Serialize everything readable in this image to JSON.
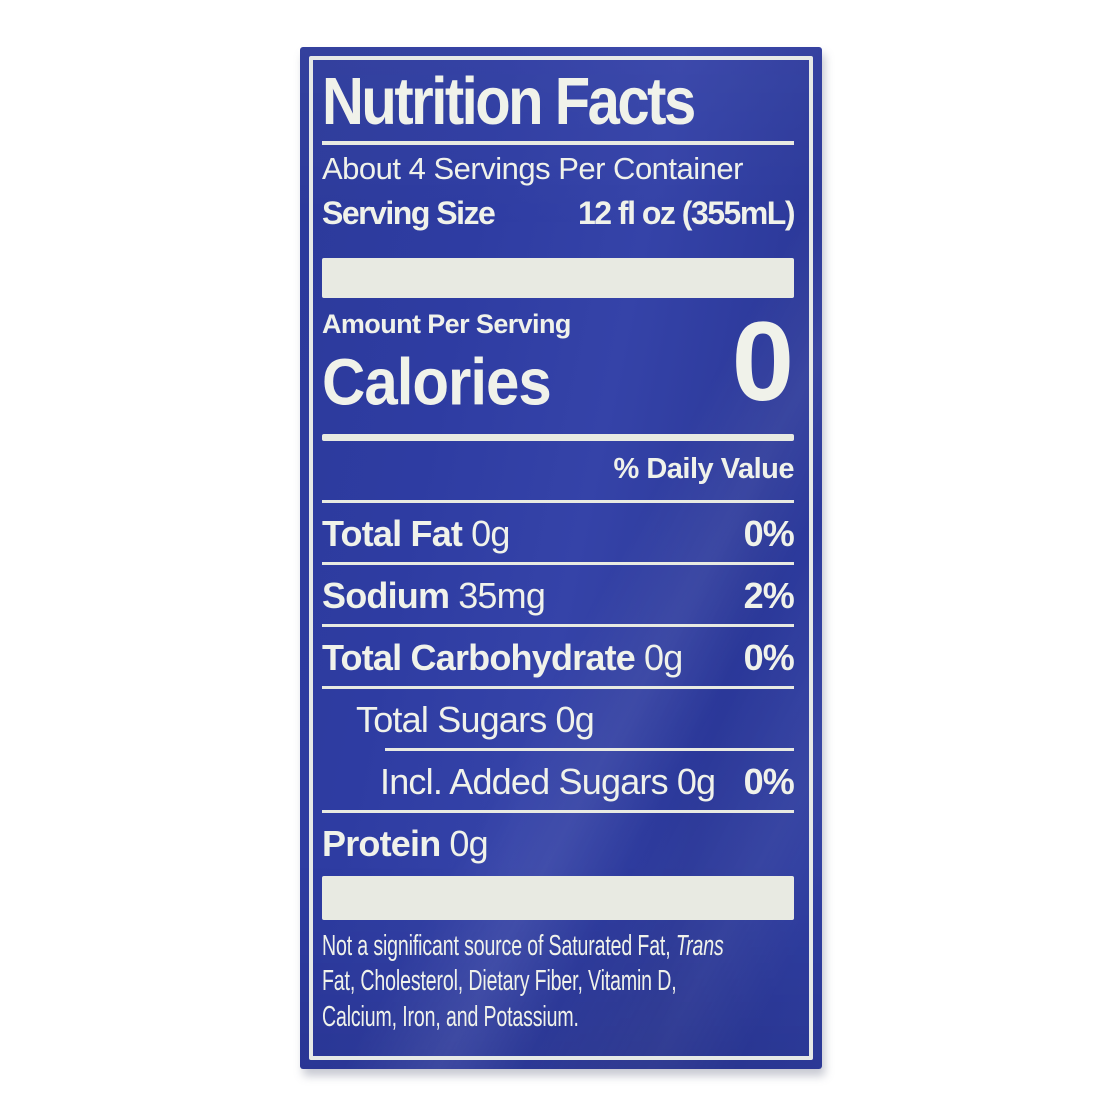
{
  "label": {
    "title": "Nutrition Facts",
    "servings_per_container": "About 4 Servings Per Container",
    "serving_size_label": "Serving Size",
    "serving_size_value": "12 fl oz (355mL)",
    "amount_per_serving": "Amount Per Serving",
    "calories_label": "Calories",
    "calories_value": "0",
    "daily_value_header": "% Daily Value",
    "rows": [
      {
        "name": "Total Fat",
        "amount": "0g",
        "dv": "0%",
        "indent": 0,
        "bold": true,
        "divider": "full"
      },
      {
        "name": "Sodium",
        "amount": "35mg",
        "dv": "2%",
        "indent": 0,
        "bold": true,
        "divider": "full"
      },
      {
        "name": "Total Carbohydrate",
        "amount": "0g",
        "dv": "0%",
        "indent": 0,
        "bold": true,
        "divider": "full"
      },
      {
        "name": "Total Sugars",
        "amount": "0g",
        "dv": "",
        "indent": 1,
        "bold": false,
        "divider": "indent"
      },
      {
        "name": "Incl. Added Sugars",
        "amount": "0g",
        "dv": "0%",
        "indent": 2,
        "bold": false,
        "divider": "full"
      },
      {
        "name": "Protein",
        "amount": "0g",
        "dv": "",
        "indent": 0,
        "bold": true,
        "divider": "none"
      }
    ],
    "footnote": {
      "line1_pre": "Not a significant source of Saturated Fat, ",
      "line1_italic": "Trans",
      "line2": "Fat, Cholesterol, Dietary Fiber, Vitamin D,",
      "line3": "Calcium, Iron, and Potassium."
    },
    "colors": {
      "label_blue": "#2e3ca0",
      "text_white": "#f0f2ea",
      "bar_white": "#e8eae2"
    }
  }
}
